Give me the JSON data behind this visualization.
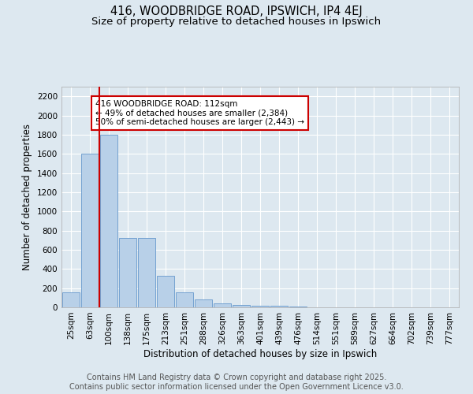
{
  "title": "416, WOODBRIDGE ROAD, IPSWICH, IP4 4EJ",
  "subtitle": "Size of property relative to detached houses in Ipswich",
  "xlabel": "Distribution of detached houses by size in Ipswich",
  "ylabel": "Number of detached properties",
  "categories": [
    "25sqm",
    "63sqm",
    "100sqm",
    "138sqm",
    "175sqm",
    "213sqm",
    "251sqm",
    "288sqm",
    "326sqm",
    "363sqm",
    "401sqm",
    "439sqm",
    "476sqm",
    "514sqm",
    "551sqm",
    "589sqm",
    "627sqm",
    "664sqm",
    "702sqm",
    "739sqm",
    "777sqm"
  ],
  "values": [
    160,
    1600,
    1800,
    720,
    720,
    325,
    155,
    85,
    45,
    25,
    15,
    15,
    10,
    0,
    0,
    0,
    0,
    0,
    0,
    0,
    0
  ],
  "bar_color": "#b8d0e8",
  "bar_edge_color": "#6699cc",
  "vline_x_index": 1.5,
  "vline_color": "#cc0000",
  "annotation_text": "416 WOODBRIDGE ROAD: 112sqm\n← 49% of detached houses are smaller (2,384)\n50% of semi-detached houses are larger (2,443) →",
  "annotation_box_facecolor": "white",
  "annotation_box_edgecolor": "#cc0000",
  "annotation_text_color": "#000000",
  "ylim": [
    0,
    2300
  ],
  "yticks": [
    0,
    200,
    400,
    600,
    800,
    1000,
    1200,
    1400,
    1600,
    1800,
    2000,
    2200
  ],
  "background_color": "#dde8f0",
  "plot_bg_color": "#dde8f0",
  "grid_color": "white",
  "footer_line1": "Contains HM Land Registry data © Crown copyright and database right 2025.",
  "footer_line2": "Contains public sector information licensed under the Open Government Licence v3.0.",
  "title_fontsize": 10.5,
  "subtitle_fontsize": 9.5,
  "axis_label_fontsize": 8.5,
  "tick_fontsize": 7.5,
  "annotation_fontsize": 7.5,
  "footer_fontsize": 7.0
}
